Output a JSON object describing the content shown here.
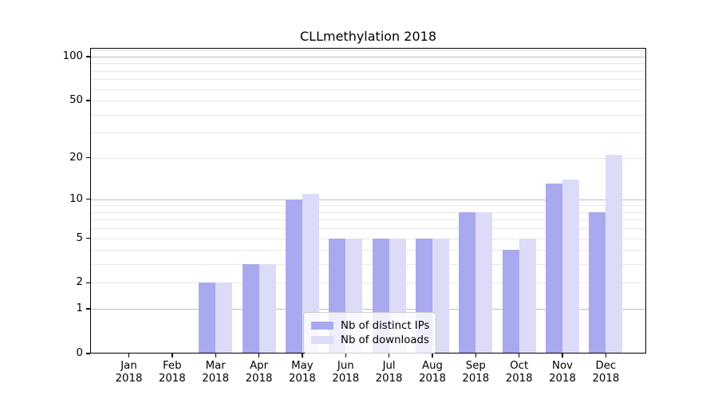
{
  "chart_data": {
    "type": "bar",
    "title": "CLLmethylation 2018",
    "categories": [
      "Jan 2018",
      "Feb 2018",
      "Mar 2018",
      "Apr 2018",
      "May 2018",
      "Jun 2018",
      "Jul 2018",
      "Aug 2018",
      "Sep 2018",
      "Oct 2018",
      "Nov 2018",
      "Dec 2018"
    ],
    "series": [
      {
        "name": "Nb of distinct IPs",
        "color": "#a9a9f0",
        "values": [
          0,
          0,
          2,
          3,
          10,
          5,
          5,
          5,
          8,
          4,
          13,
          8
        ]
      },
      {
        "name": "Nb of downloads",
        "color": "#dcdcf8",
        "values": [
          0,
          0,
          2,
          3,
          11,
          5,
          5,
          5,
          8,
          5,
          14,
          21
        ]
      }
    ],
    "yscale": "log10(value+1)",
    "ylim": [
      0,
      115
    ],
    "y_tick_values": [
      0,
      1,
      2,
      5,
      10,
      20,
      50,
      100
    ],
    "y_tick_labels": [
      "0",
      "1",
      "2",
      "5",
      "10",
      "20",
      "50",
      "100"
    ],
    "minor_gridline_values": [
      2,
      3,
      4,
      5,
      6,
      7,
      8,
      9,
      20,
      30,
      40,
      50,
      60,
      70,
      80,
      90,
      110
    ],
    "major_gridline_values": [
      1,
      10,
      100
    ],
    "grid": true,
    "legend_position": "lower-center",
    "xlabel": "",
    "ylabel": ""
  }
}
